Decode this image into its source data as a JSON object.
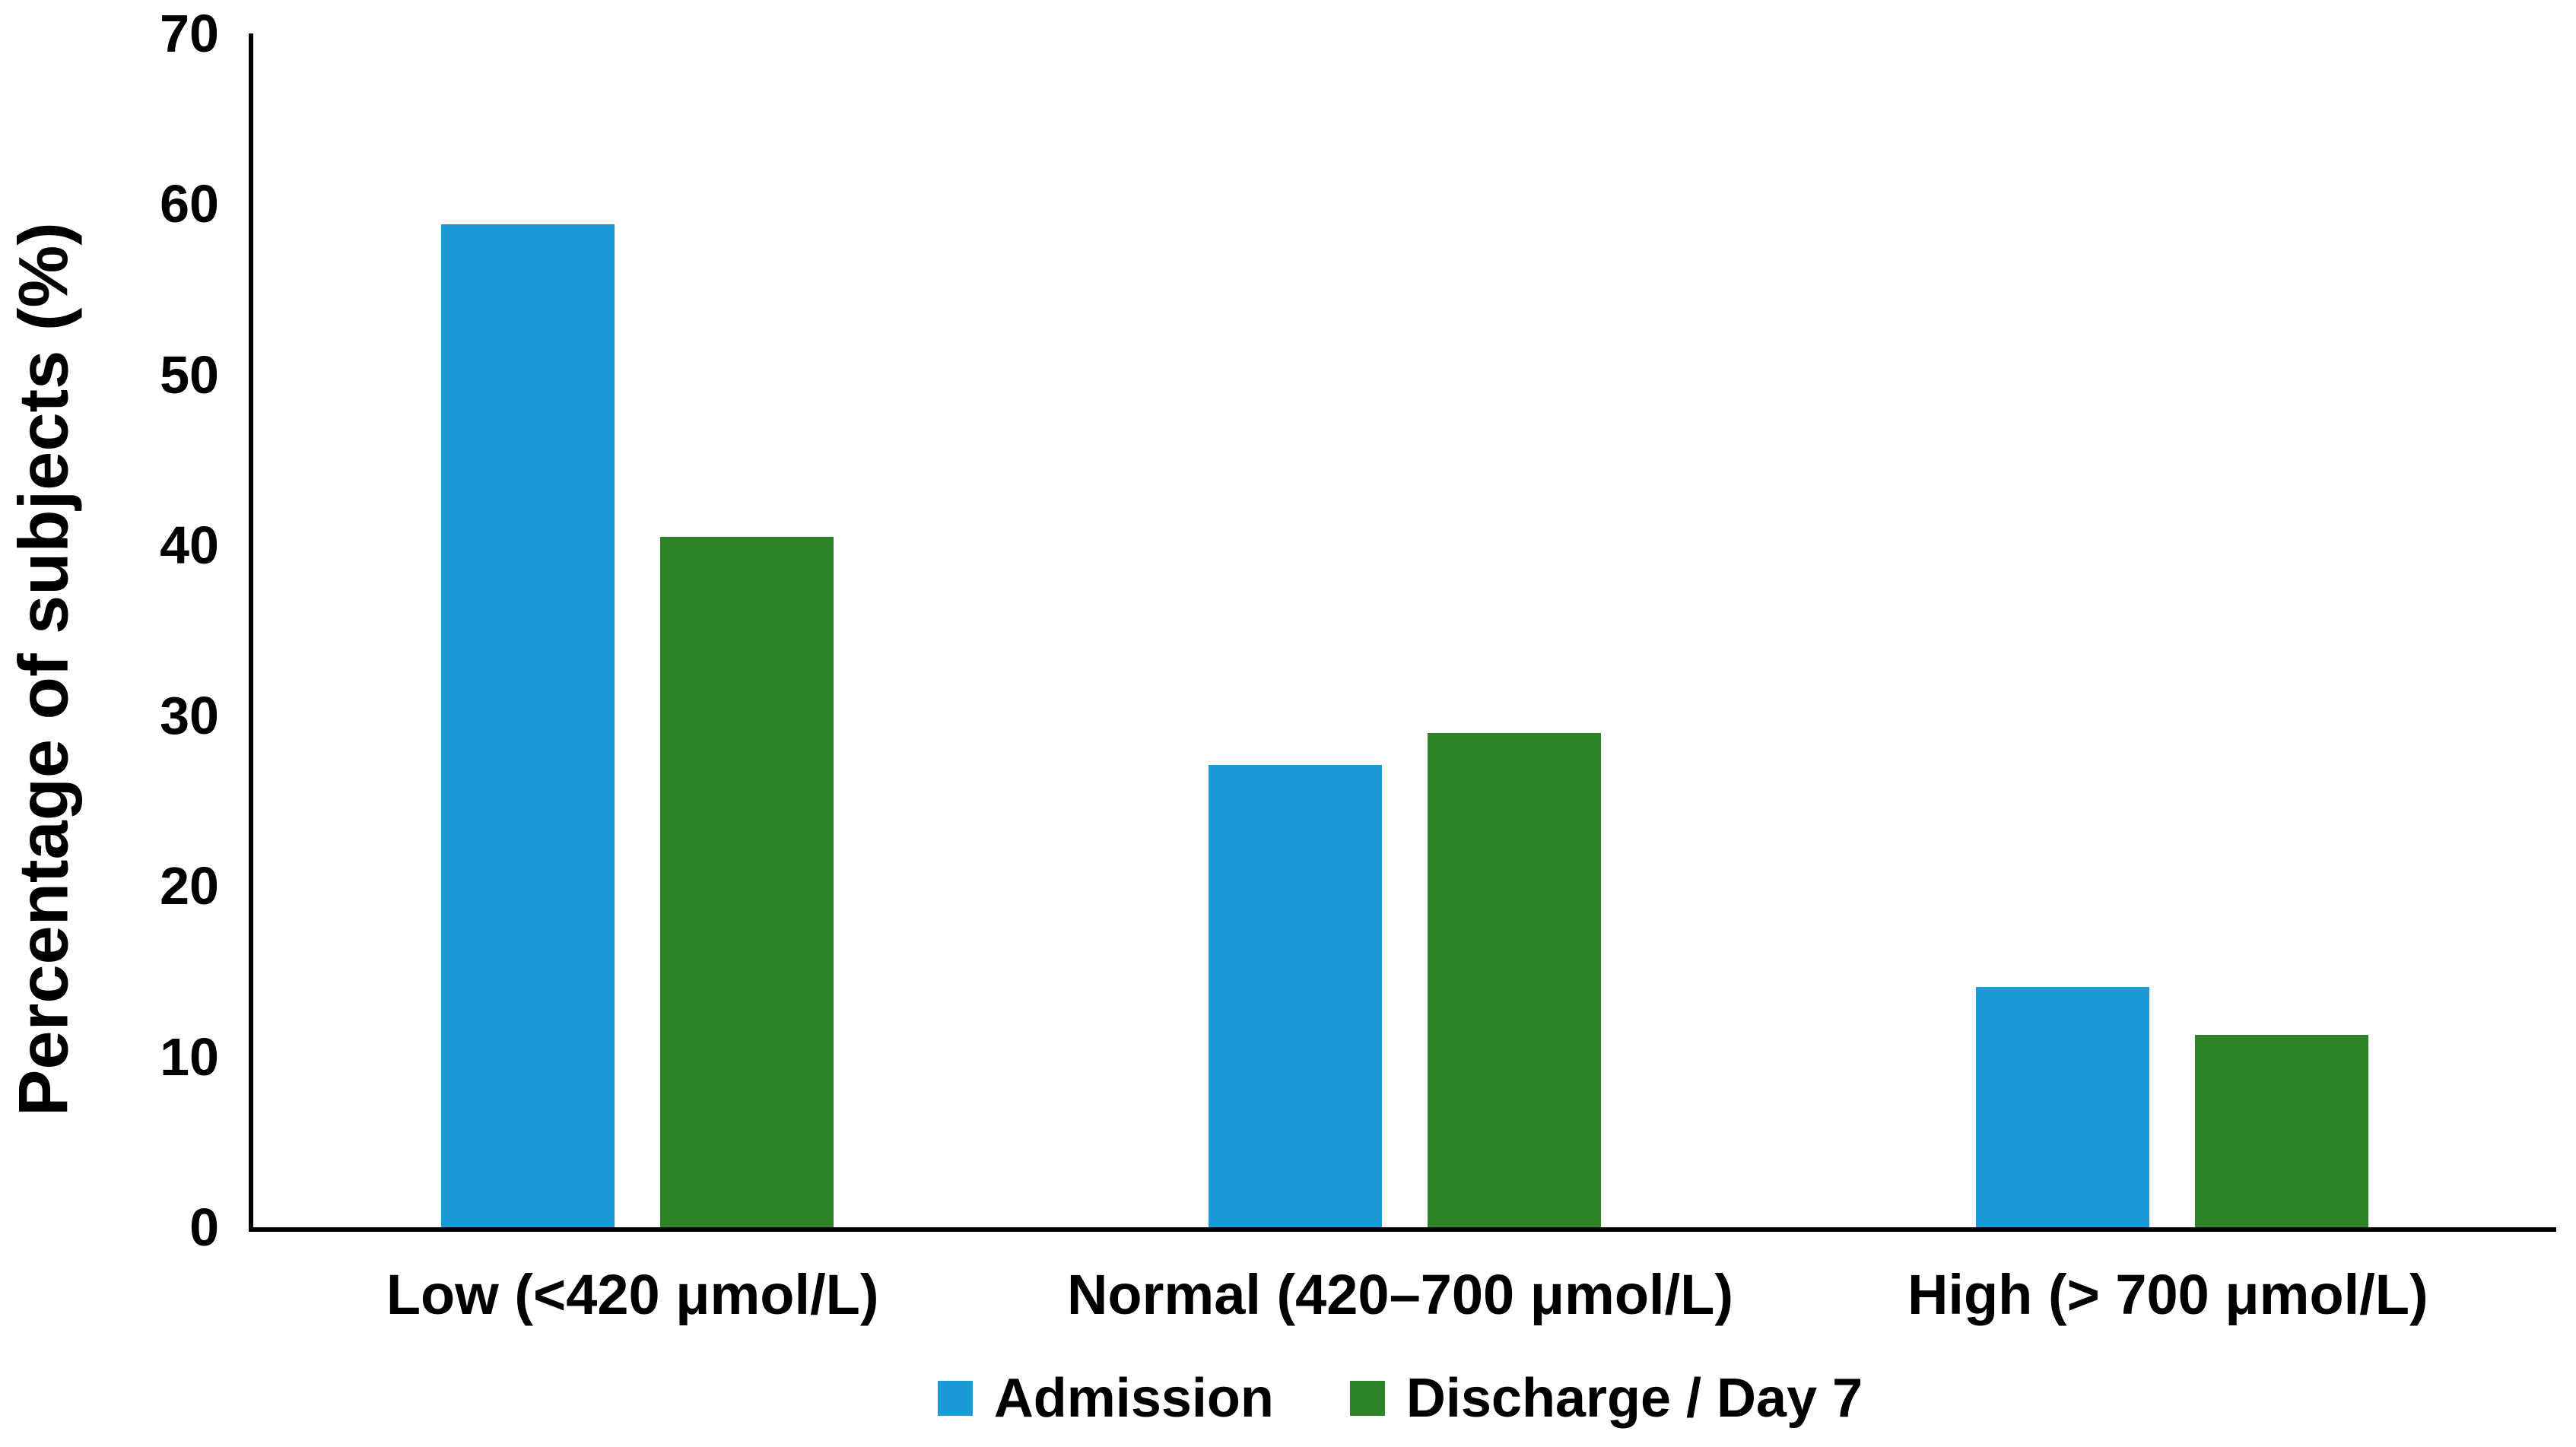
{
  "chart_data": {
    "type": "bar",
    "title": "",
    "xlabel": "",
    "ylabel": "Percentage of subjects (%)",
    "ylim": [
      0,
      70
    ],
    "y_ticks": [
      0,
      10,
      20,
      30,
      40,
      50,
      60,
      70
    ],
    "grid": false,
    "legend_position": "bottom",
    "categories": [
      "Low (<420 μmol/L)",
      "Normal (420–700 μmol/L)",
      "High (> 700 μmol/L)"
    ],
    "series": [
      {
        "name": "Admission",
        "color": "#1B9AD6",
        "values": [
          58.8,
          27.1,
          14.1
        ]
      },
      {
        "name": "Discharge / Day 7",
        "color": "#2E8328",
        "values": [
          40.5,
          29.0,
          11.3
        ]
      }
    ],
    "axis_color": "#000000",
    "text_color": "#000000"
  }
}
